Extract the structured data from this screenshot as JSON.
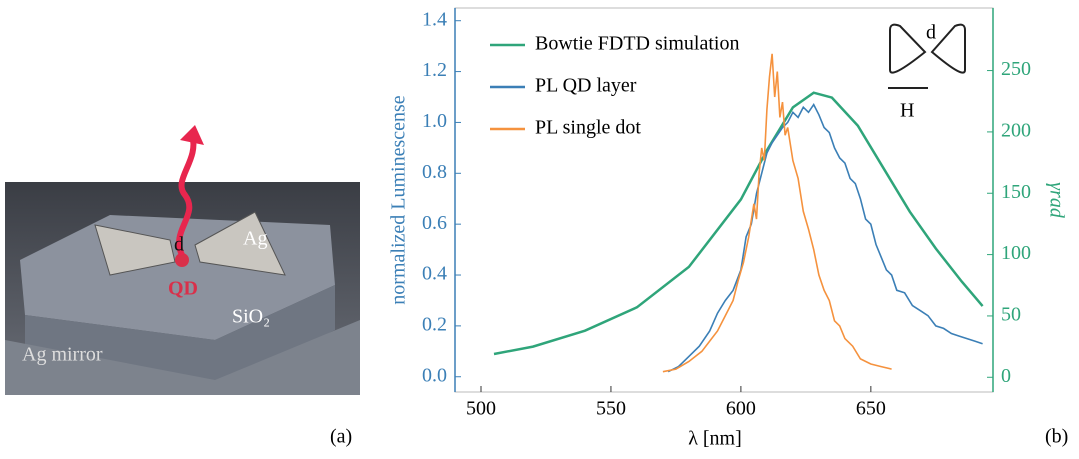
{
  "panel_a": {
    "labels": {
      "ag": "Ag",
      "d": "d",
      "qd": "QD",
      "sio2": "SiO₂",
      "mirror": "Ag mirror"
    },
    "panel_label": "(a)"
  },
  "chart_data": {
    "type": "line",
    "panel_label": "(b)",
    "x_label": "λ [nm]",
    "y_label": "normalized Luminescense",
    "y2_label": "γrad",
    "inset": {
      "d": "d",
      "H": "H"
    },
    "xlim": [
      490,
      697
    ],
    "xticks": [
      500,
      550,
      600,
      650
    ],
    "ylim": [
      -0.06,
      1.45
    ],
    "yticks": [
      {
        "value": 0,
        "label": "0.0"
      },
      0.2,
      0.4,
      0.6,
      0.8,
      {
        "value": 1,
        "label": "1.0"
      },
      1.2,
      1.4
    ],
    "y2lim": [
      -12,
      301
    ],
    "y2ticks": [
      0,
      50,
      100,
      150,
      200,
      250
    ],
    "legend": "upper left",
    "series": [
      {
        "name": "Bowtie FDTD simulation",
        "color": "#2fa57a",
        "axis": "y2",
        "x": [
          505,
          520,
          540,
          560,
          580,
          600,
          610,
          620,
          628,
          635,
          645,
          655,
          665,
          675,
          685,
          693
        ],
        "values": [
          19,
          25,
          38,
          57,
          90,
          145,
          185,
          220,
          232,
          228,
          205,
          170,
          135,
          105,
          78,
          58
        ]
      },
      {
        "name": "PL QD layer",
        "color": "#3b7fb6",
        "x": [
          572,
          576,
          580,
          584,
          588,
          591,
          594,
          597,
          600,
          602,
          604,
          606,
          608,
          610,
          612,
          614,
          616,
          618,
          620,
          622,
          624,
          626,
          628,
          630,
          632,
          634,
          636,
          638,
          640,
          642,
          644,
          646,
          648,
          650,
          652,
          654,
          656,
          658,
          660,
          663,
          666,
          669,
          672,
          675,
          678,
          681,
          684,
          687,
          690,
          693
        ],
        "values": [
          0.02,
          0.04,
          0.08,
          0.12,
          0.18,
          0.25,
          0.3,
          0.34,
          0.42,
          0.55,
          0.6,
          0.72,
          0.8,
          0.88,
          0.92,
          0.95,
          0.98,
          1.0,
          1.04,
          1.02,
          1.06,
          1.04,
          1.07,
          1.03,
          0.98,
          0.96,
          0.9,
          0.86,
          0.84,
          0.78,
          0.76,
          0.7,
          0.62,
          0.6,
          0.52,
          0.47,
          0.42,
          0.4,
          0.34,
          0.33,
          0.28,
          0.26,
          0.24,
          0.2,
          0.19,
          0.17,
          0.16,
          0.15,
          0.14,
          0.13
        ]
      },
      {
        "name": "PL single dot",
        "color": "#f5923e",
        "x": [
          570,
          575,
          580,
          585,
          588,
          591,
          594,
          597,
          599,
          601,
          603,
          605,
          606,
          607,
          608,
          609,
          610,
          611,
          612,
          613,
          614,
          615,
          616,
          617,
          618,
          620,
          622,
          624,
          626,
          628,
          630,
          632,
          634,
          636,
          638,
          640,
          643,
          646,
          650,
          654,
          658
        ],
        "values": [
          0.02,
          0.03,
          0.06,
          0.1,
          0.14,
          0.18,
          0.24,
          0.3,
          0.38,
          0.45,
          0.55,
          0.68,
          0.62,
          0.8,
          0.9,
          0.85,
          1.05,
          1.18,
          1.27,
          1.1,
          1.2,
          1.02,
          1.08,
          0.95,
          0.98,
          0.85,
          0.78,
          0.65,
          0.58,
          0.5,
          0.4,
          0.34,
          0.3,
          0.22,
          0.2,
          0.15,
          0.12,
          0.07,
          0.05,
          0.04,
          0.03
        ]
      }
    ]
  }
}
